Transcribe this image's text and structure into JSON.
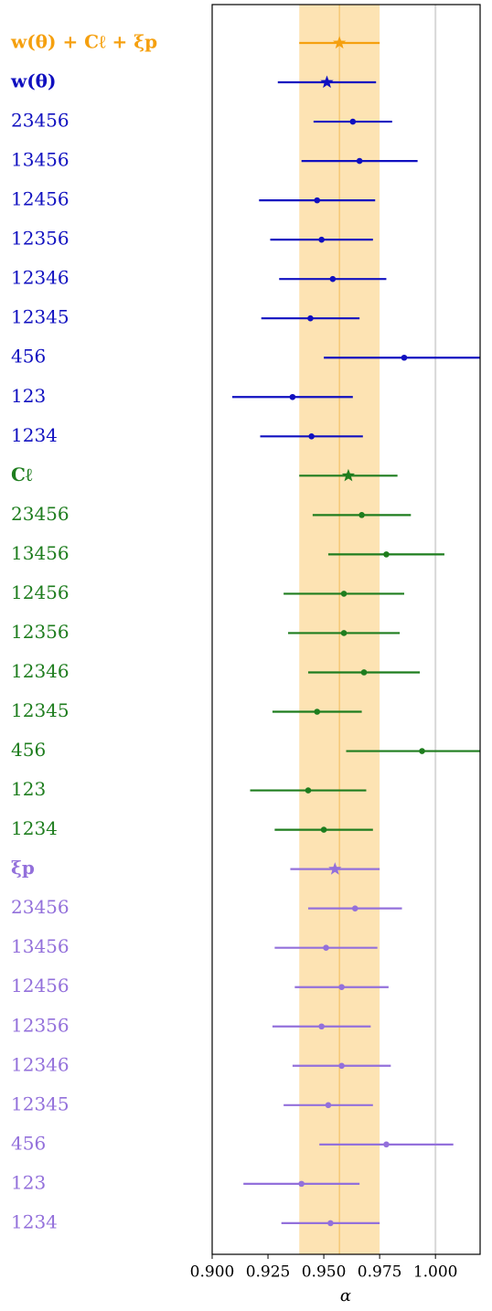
{
  "chart_data": {
    "type": "forest",
    "xlabel": "α",
    "xlim": [
      0.9,
      1.02
    ],
    "xticks": [
      {
        "value": 0.9,
        "label": "0.900"
      },
      {
        "value": 0.925,
        "label": "0.925"
      },
      {
        "value": 0.95,
        "label": "0.950"
      },
      {
        "value": 0.975,
        "label": "0.975"
      },
      {
        "value": 1.0,
        "label": "1.000"
      }
    ],
    "band": [
      0.939,
      0.975
    ],
    "band_color": "#fde3b3",
    "reference_line": 1.0,
    "series": [
      {
        "name": "w(θ) + Cℓ + ξp",
        "color": "#f5a00f",
        "summary": 0.957,
        "summary_error": 0.018,
        "categories": [],
        "values": [],
        "errors": []
      },
      {
        "name": "w(θ)",
        "color": "#1010c0",
        "summary": 0.9514,
        "summary_error": 0.022,
        "categories": [
          "23456",
          "13456",
          "12456",
          "12356",
          "12346",
          "12345",
          "456",
          "123",
          "1234"
        ],
        "values": [
          0.963,
          0.966,
          0.947,
          0.949,
          0.954,
          0.944,
          0.986,
          0.936,
          0.9445
        ],
        "errors": [
          0.0176,
          0.026,
          0.026,
          0.023,
          0.024,
          0.022,
          0.036,
          0.027,
          0.023
        ]
      },
      {
        "name": "Cℓ",
        "color": "#1e7d1e",
        "summary": 0.961,
        "summary_error": 0.022,
        "categories": [
          "23456",
          "13456",
          "12456",
          "12356",
          "12346",
          "12345",
          "456",
          "123",
          "1234"
        ],
        "values": [
          0.967,
          0.978,
          0.959,
          0.959,
          0.968,
          0.947,
          0.994,
          0.943,
          0.95
        ],
        "errors": [
          0.022,
          0.026,
          0.027,
          0.025,
          0.025,
          0.02,
          0.034,
          0.026,
          0.022
        ]
      },
      {
        "name": "ξp",
        "color": "#9370db",
        "summary": 0.955,
        "summary_error": 0.02,
        "categories": [
          "23456",
          "13456",
          "12456",
          "12356",
          "12346",
          "12345",
          "456",
          "123",
          "1234"
        ],
        "values": [
          0.964,
          0.951,
          0.958,
          0.949,
          0.958,
          0.952,
          0.978,
          0.94,
          0.953
        ],
        "errors": [
          0.021,
          0.023,
          0.021,
          0.022,
          0.022,
          0.02,
          0.03,
          0.026,
          0.022
        ]
      }
    ]
  }
}
